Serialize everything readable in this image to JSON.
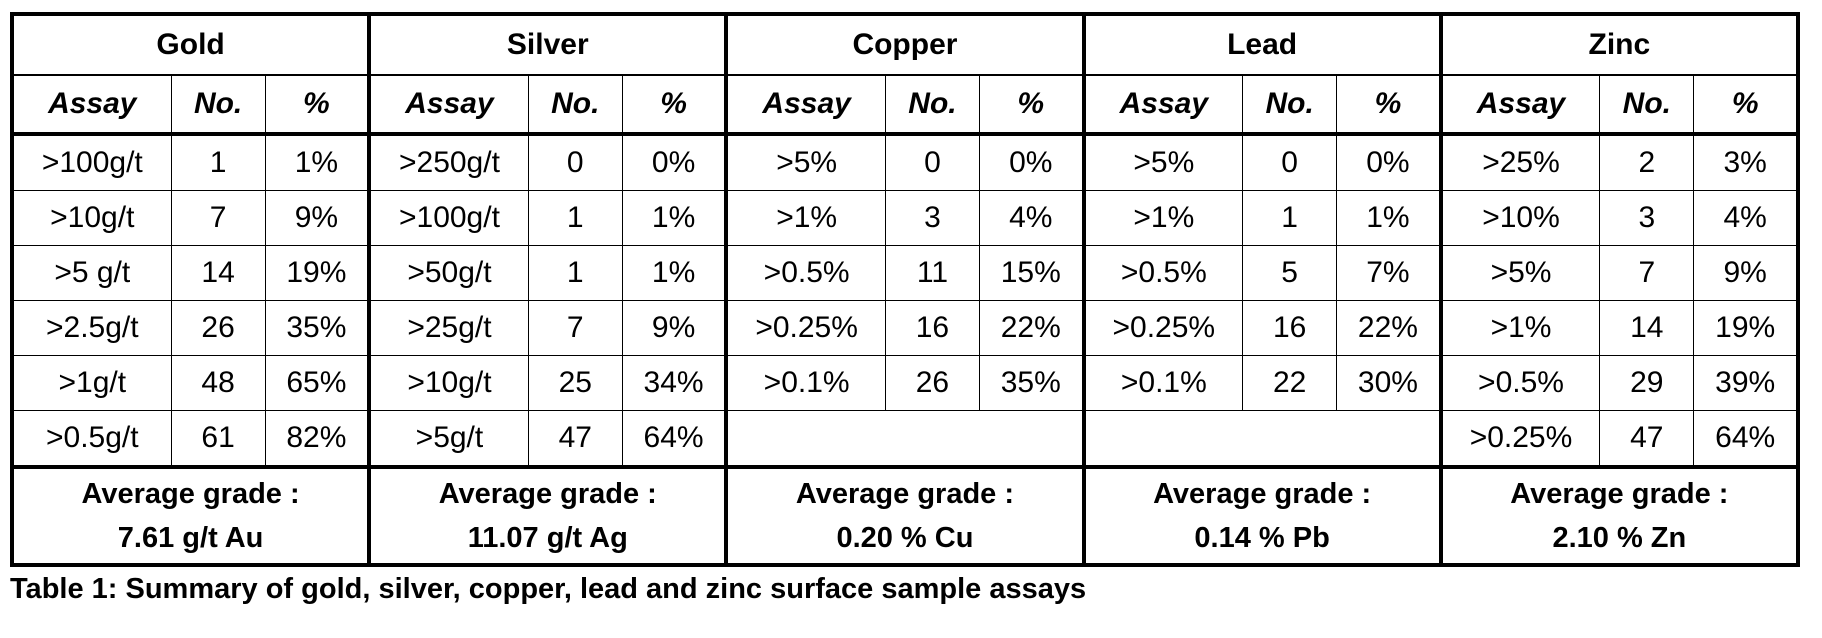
{
  "metals": [
    {
      "name": "Gold",
      "headers": [
        "Assay",
        "No.",
        "%"
      ],
      "rows": [
        [
          ">100g/t",
          "1",
          "1%"
        ],
        [
          ">10g/t",
          "7",
          "9%"
        ],
        [
          ">5 g/t",
          "14",
          "19%"
        ],
        [
          ">2.5g/t",
          "26",
          "35%"
        ],
        [
          ">1g/t",
          "48",
          "65%"
        ],
        [
          ">0.5g/t",
          "61",
          "82%"
        ]
      ],
      "average_label": "Average grade :",
      "average_value": "7.61 g/t Au"
    },
    {
      "name": "Silver",
      "headers": [
        "Assay",
        "No.",
        "%"
      ],
      "rows": [
        [
          ">250g/t",
          "0",
          "0%"
        ],
        [
          ">100g/t",
          "1",
          "1%"
        ],
        [
          ">50g/t",
          "1",
          "1%"
        ],
        [
          ">25g/t",
          "7",
          "9%"
        ],
        [
          ">10g/t",
          "25",
          "34%"
        ],
        [
          ">5g/t",
          "47",
          "64%"
        ]
      ],
      "average_label": "Average grade :",
      "average_value": "11.07 g/t Ag"
    },
    {
      "name": "Copper",
      "headers": [
        "Assay",
        "No.",
        "%"
      ],
      "rows": [
        [
          ">5%",
          "0",
          "0%"
        ],
        [
          ">1%",
          "3",
          "4%"
        ],
        [
          ">0.5%",
          "11",
          "15%"
        ],
        [
          ">0.25%",
          "16",
          "22%"
        ],
        [
          ">0.1%",
          "26",
          "35%"
        ],
        [
          "",
          "",
          ""
        ]
      ],
      "average_label": "Average grade :",
      "average_value": "0.20 % Cu"
    },
    {
      "name": "Lead",
      "headers": [
        "Assay",
        "No.",
        "%"
      ],
      "rows": [
        [
          ">5%",
          "0",
          "0%"
        ],
        [
          ">1%",
          "1",
          "1%"
        ],
        [
          ">0.5%",
          "5",
          "7%"
        ],
        [
          ">0.25%",
          "16",
          "22%"
        ],
        [
          ">0.1%",
          "22",
          "30%"
        ],
        [
          "",
          "",
          ""
        ]
      ],
      "average_label": "Average grade :",
      "average_value": "0.14 % Pb"
    },
    {
      "name": "Zinc",
      "headers": [
        "Assay",
        "No.",
        "%"
      ],
      "rows": [
        [
          ">25%",
          "2",
          "3%"
        ],
        [
          ">10%",
          "3",
          "4%"
        ],
        [
          ">5%",
          "7",
          "9%"
        ],
        [
          ">1%",
          "14",
          "19%"
        ],
        [
          ">0.5%",
          "29",
          "39%"
        ],
        [
          ">0.25%",
          "47",
          "64%"
        ]
      ],
      "average_label": "Average grade :",
      "average_value": "2.10 % Zn"
    }
  ],
  "caption": "Table 1: Summary of gold, silver, copper, lead and zinc surface sample assays"
}
